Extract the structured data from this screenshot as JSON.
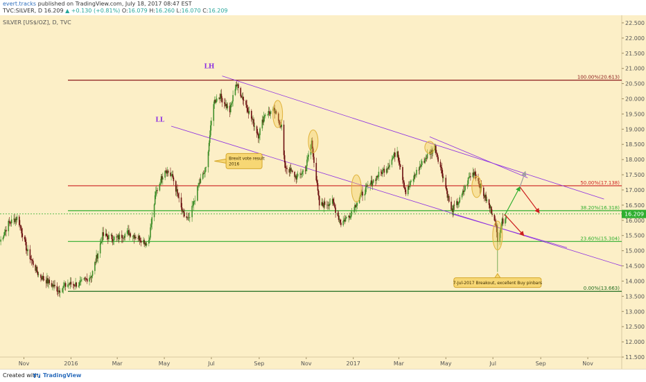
{
  "header": {
    "author": "evert.tracks",
    "published": "published on TradingView.com, July 18, 2017 08:47 EST",
    "symbol": "TVC:SILVER, D",
    "last": "16.209",
    "change": "▲ +0.130 (+0.81%)",
    "ohlc": {
      "o_label": "O:",
      "o": "16.079",
      "h_label": "H:",
      "h": "16.260",
      "l_label": "L:",
      "l": "16.070",
      "c_label": "C:",
      "c": "16.209"
    }
  },
  "chart_title": "SILVER [US$/OZ], D, TVC",
  "footer": {
    "created": "Created with",
    "brand": "TradingView"
  },
  "colors": {
    "background": "#fcefc7",
    "bull": "#3f8f2a",
    "bear": "#6b0f0f",
    "fib_red": "#cc1f1f",
    "fib_green": "#2fae2f",
    "channel": "#8a2be2",
    "highlight": "#f2c94c",
    "last_price_badge": "#2fae2f"
  },
  "chart_data": {
    "type": "candlestick",
    "symbol": "SILVER [US$/OZ]",
    "interval": "D",
    "exchange": "TVC",
    "ylim": [
      11.5,
      22.75
    ],
    "y_ticks": [
      "22.500",
      "22.000",
      "21.500",
      "21.000",
      "20.500",
      "20.000",
      "19.500",
      "19.000",
      "18.500",
      "18.000",
      "17.500",
      "17.000",
      "16.500",
      "16.000",
      "15.500",
      "15.000",
      "14.500",
      "14.000",
      "13.500",
      "13.000",
      "12.500",
      "12.000",
      "11.500"
    ],
    "x_ticks": [
      "Nov",
      "2016",
      "Mar",
      "May",
      "Jul",
      "Sep",
      "Nov",
      "2017",
      "Mar",
      "May",
      "Jul",
      "Sep",
      "Nov"
    ],
    "x_range": [
      "2015-10-01",
      "2017-12-15"
    ],
    "last_price": "16.209",
    "price_path": [
      [
        "2015-10-01",
        15.3
      ],
      [
        "2015-10-12",
        15.9
      ],
      [
        "2015-10-24",
        16.1
      ],
      [
        "2015-11-05",
        15.0
      ],
      [
        "2015-11-20",
        14.2
      ],
      [
        "2015-12-01",
        14.0
      ],
      [
        "2015-12-16",
        13.7
      ],
      [
        "2015-12-28",
        13.9
      ],
      [
        "2016-01-12",
        13.9
      ],
      [
        "2016-01-28",
        14.2
      ],
      [
        "2016-02-11",
        15.5
      ],
      [
        "2016-02-29",
        15.4
      ],
      [
        "2016-03-15",
        15.6
      ],
      [
        "2016-03-31",
        15.4
      ],
      [
        "2016-04-10",
        15.2
      ],
      [
        "2016-04-20",
        16.9
      ],
      [
        "2016-05-02",
        17.7
      ],
      [
        "2016-05-12",
        17.4
      ],
      [
        "2016-05-25",
        16.2
      ],
      [
        "2016-06-02",
        16.0
      ],
      [
        "2016-06-15",
        17.2
      ],
      [
        "2016-06-24",
        17.7
      ],
      [
        "2016-07-04",
        19.9
      ],
      [
        "2016-07-12",
        20.1
      ],
      [
        "2016-07-25",
        19.6
      ],
      [
        "2016-08-02",
        20.5
      ],
      [
        "2016-08-15",
        19.8
      ],
      [
        "2016-08-31",
        18.8
      ],
      [
        "2016-09-08",
        19.5
      ],
      [
        "2016-09-20",
        19.6
      ],
      [
        "2016-09-30",
        19.1
      ],
      [
        "2016-10-04",
        17.8
      ],
      [
        "2016-10-20",
        17.4
      ],
      [
        "2016-10-31",
        17.7
      ],
      [
        "2016-11-08",
        18.6
      ],
      [
        "2016-11-18",
        16.5
      ],
      [
        "2016-12-05",
        16.6
      ],
      [
        "2016-12-16",
        15.9
      ],
      [
        "2016-12-28",
        16.2
      ],
      [
        "2017-01-10",
        16.8
      ],
      [
        "2017-01-30",
        17.4
      ],
      [
        "2017-02-15",
        17.8
      ],
      [
        "2017-02-27",
        18.3
      ],
      [
        "2017-03-10",
        16.9
      ],
      [
        "2017-03-24",
        17.6
      ],
      [
        "2017-04-06",
        18.1
      ],
      [
        "2017-04-17",
        18.4
      ],
      [
        "2017-04-28",
        17.4
      ],
      [
        "2017-05-08",
        16.3
      ],
      [
        "2017-05-20",
        16.7
      ],
      [
        "2017-05-31",
        17.4
      ],
      [
        "2017-06-07",
        17.6
      ],
      [
        "2017-06-20",
        16.8
      ],
      [
        "2017-07-03",
        16.1
      ],
      [
        "2017-07-07",
        15.4
      ],
      [
        "2017-07-12",
        15.9
      ],
      [
        "2017-07-18",
        16.2
      ]
    ],
    "annotations": {
      "channel_label_high": "LH",
      "channel_label_low": "LL",
      "brexit_note_line1": "Brexit vote result",
      "brexit_note_line2": "2016",
      "breakout_note": "7-Jul-2017 Breakout, excellent Buy pinbars"
    },
    "fibonacci_levels": [
      {
        "label": "100.00%(20.613)",
        "value": 20.613,
        "color": "#8b1a1a"
      },
      {
        "label": "50.00%(17.138)",
        "value": 17.138,
        "color": "#cc1f1f"
      },
      {
        "label": "38.20%(16.318)",
        "value": 16.318,
        "color": "#2fae2f"
      },
      {
        "label": "23.60%(15.304)",
        "value": 15.304,
        "color": "#2fae2f"
      },
      {
        "label": "0.00%(13.663)",
        "value": 13.663,
        "color": "#1e6b1e"
      }
    ],
    "channel_lines": [
      {
        "from": [
          "2016-07-15",
          20.75
        ],
        "to": [
          "2017-11-22",
          16.7
        ]
      },
      {
        "from": [
          "2016-05-10",
          19.1
        ],
        "to": [
          "2017-12-15",
          14.5
        ]
      },
      {
        "from": [
          "2017-04-10",
          18.75
        ],
        "to": [
          "2017-08-15",
          17.4
        ]
      },
      {
        "from": [
          "2017-05-10",
          16.2
        ],
        "to": [
          "2017-10-05",
          15.1
        ]
      }
    ],
    "highlight_ellipses": [
      {
        "date": "2016-09-25",
        "center": 19.5,
        "h": 0.9
      },
      {
        "date": "2016-11-10",
        "center": 18.6,
        "h": 0.75
      },
      {
        "date": "2017-01-05",
        "center": 17.05,
        "h": 0.9
      },
      {
        "date": "2017-04-10",
        "center": 18.4,
        "h": 0.4
      },
      {
        "date": "2017-06-10",
        "center": 17.1,
        "h": 0.7
      },
      {
        "date": "2017-07-07",
        "center": 15.5,
        "h": 0.95
      }
    ],
    "projection_arrows": [
      {
        "color": "#2fae2f",
        "from": [
          "2017-07-16",
          16.15
        ],
        "to": [
          "2017-08-05",
          17.1
        ]
      },
      {
        "color": "#cc1f1f",
        "from": [
          "2017-08-05",
          17.1
        ],
        "to": [
          "2017-08-30",
          16.25
        ]
      },
      {
        "color": "#cc1f1f",
        "from": [
          "2017-07-16",
          16.2
        ],
        "to": [
          "2017-08-10",
          15.5
        ]
      },
      {
        "color": "#9e9e9e",
        "from": [
          "2017-08-05",
          17.1
        ],
        "to": [
          "2017-08-12",
          17.6
        ]
      }
    ]
  }
}
